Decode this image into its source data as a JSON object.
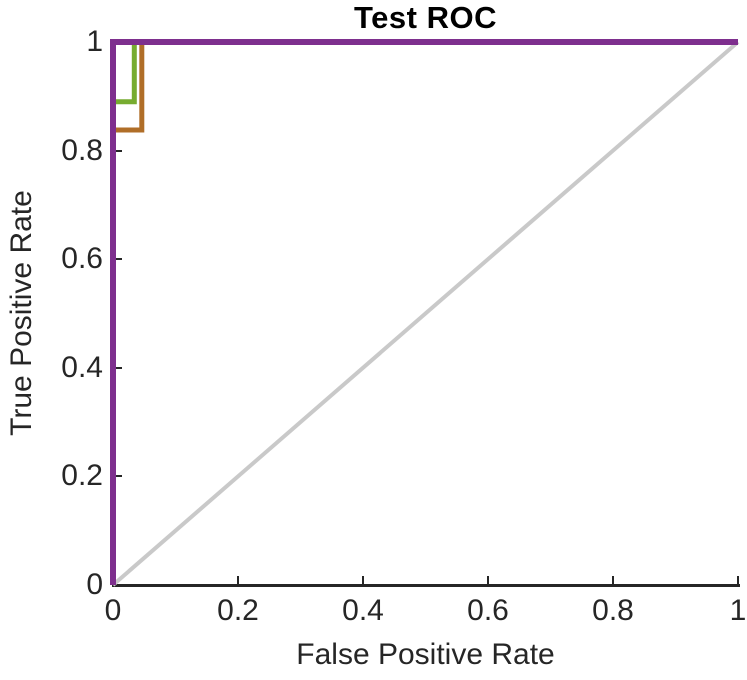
{
  "figure": {
    "title": "Test ROC",
    "xlabel": "False Positive Rate",
    "ylabel": "True Positive Rate"
  },
  "colors": {
    "background": "#ffffff",
    "axis": "#262626",
    "tick_text": "#262626",
    "title_text": "#000000",
    "purple_curve": "#7E2F8E",
    "green_curve": "#77AC30",
    "orange_curve": "#B06E28",
    "reference_line": "#C9C9C9"
  },
  "chart_data": {
    "type": "line",
    "title": "Test ROC",
    "xlabel": "False Positive Rate",
    "ylabel": "True Positive Rate",
    "xlim": [
      0,
      1
    ],
    "ylim": [
      0,
      1
    ],
    "grid": false,
    "legend": "none",
    "x_ticks": [
      {
        "v": 0,
        "label": "0"
      },
      {
        "v": 0.2,
        "label": "0.2"
      },
      {
        "v": 0.4,
        "label": "0.4"
      },
      {
        "v": 0.6,
        "label": "0.6"
      },
      {
        "v": 0.8,
        "label": "0.8"
      },
      {
        "v": 1,
        "label": "1"
      }
    ],
    "y_ticks": [
      {
        "v": 0,
        "label": "0"
      },
      {
        "v": 0.2,
        "label": "0.2"
      },
      {
        "v": 0.4,
        "label": "0.4"
      },
      {
        "v": 0.6,
        "label": "0.6"
      },
      {
        "v": 0.8,
        "label": "0.8"
      },
      {
        "v": 1,
        "label": "1"
      }
    ],
    "series": [
      {
        "name": "reference-diagonal",
        "color": "#C9C9C9",
        "width": 4,
        "points": [
          [
            0,
            0
          ],
          [
            1,
            1
          ]
        ]
      },
      {
        "name": "roc-curve-orange",
        "color": "#B06E28",
        "width": 5,
        "points": [
          [
            0,
            0
          ],
          [
            0,
            0.838
          ],
          [
            0.046,
            0.838
          ],
          [
            0.046,
            1
          ],
          [
            1,
            1
          ]
        ]
      },
      {
        "name": "roc-curve-green",
        "color": "#77AC30",
        "width": 5,
        "points": [
          [
            0,
            0
          ],
          [
            0,
            0.89
          ],
          [
            0.034,
            0.89
          ],
          [
            0.034,
            1
          ],
          [
            1,
            1
          ]
        ]
      },
      {
        "name": "roc-curve-purple",
        "color": "#7E2F8E",
        "width": 6,
        "points": [
          [
            0,
            0
          ],
          [
            0,
            1
          ],
          [
            1,
            1
          ]
        ]
      }
    ]
  }
}
